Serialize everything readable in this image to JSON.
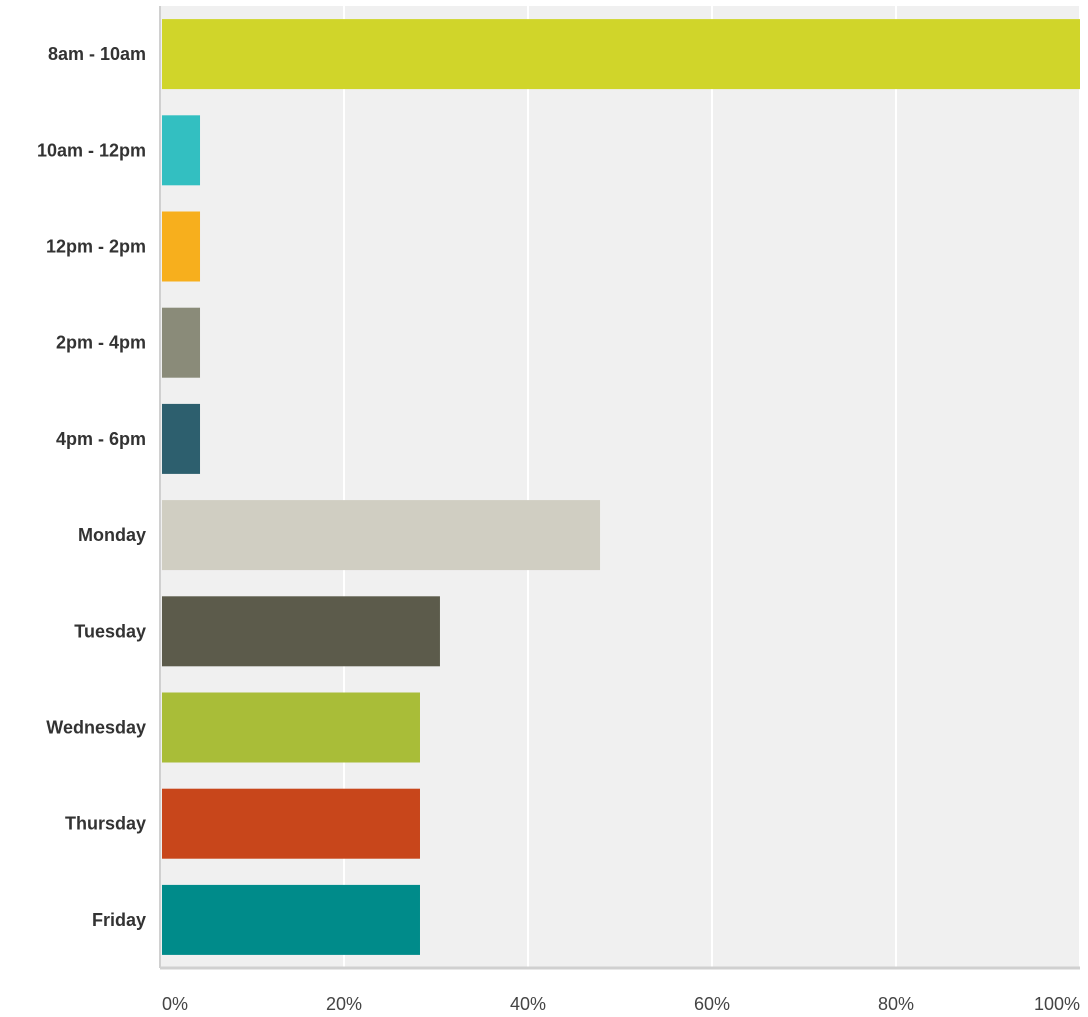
{
  "chart_data": {
    "type": "bar",
    "orientation": "horizontal",
    "title": "",
    "xlabel": "",
    "ylabel": "",
    "categories": [
      "8am - 10am",
      "10am - 12pm",
      "12pm - 2pm",
      "2pm - 4pm",
      "4pm - 6pm",
      "Monday",
      "Tuesday",
      "Wednesday",
      "Thursday",
      "Friday"
    ],
    "values": [
      100,
      4.35,
      4.35,
      4.35,
      4.35,
      47.83,
      30.43,
      28.26,
      28.26,
      28.26
    ],
    "colors": [
      "#d0d52a",
      "#33bfc1",
      "#f7af1d",
      "#8a8b79",
      "#2d5f6e",
      "#d0cec2",
      "#5c5b4b",
      "#a9bd38",
      "#c8461b",
      "#008b8a"
    ],
    "xlim": [
      0,
      100
    ],
    "xticks": [
      0,
      20,
      40,
      60,
      80,
      100
    ],
    "xtick_labels": [
      "0%",
      "20%",
      "40%",
      "60%",
      "80%",
      "100%"
    ],
    "grid": true,
    "plot_background": "#f0f0f0",
    "grid_color": "#ffffff"
  }
}
